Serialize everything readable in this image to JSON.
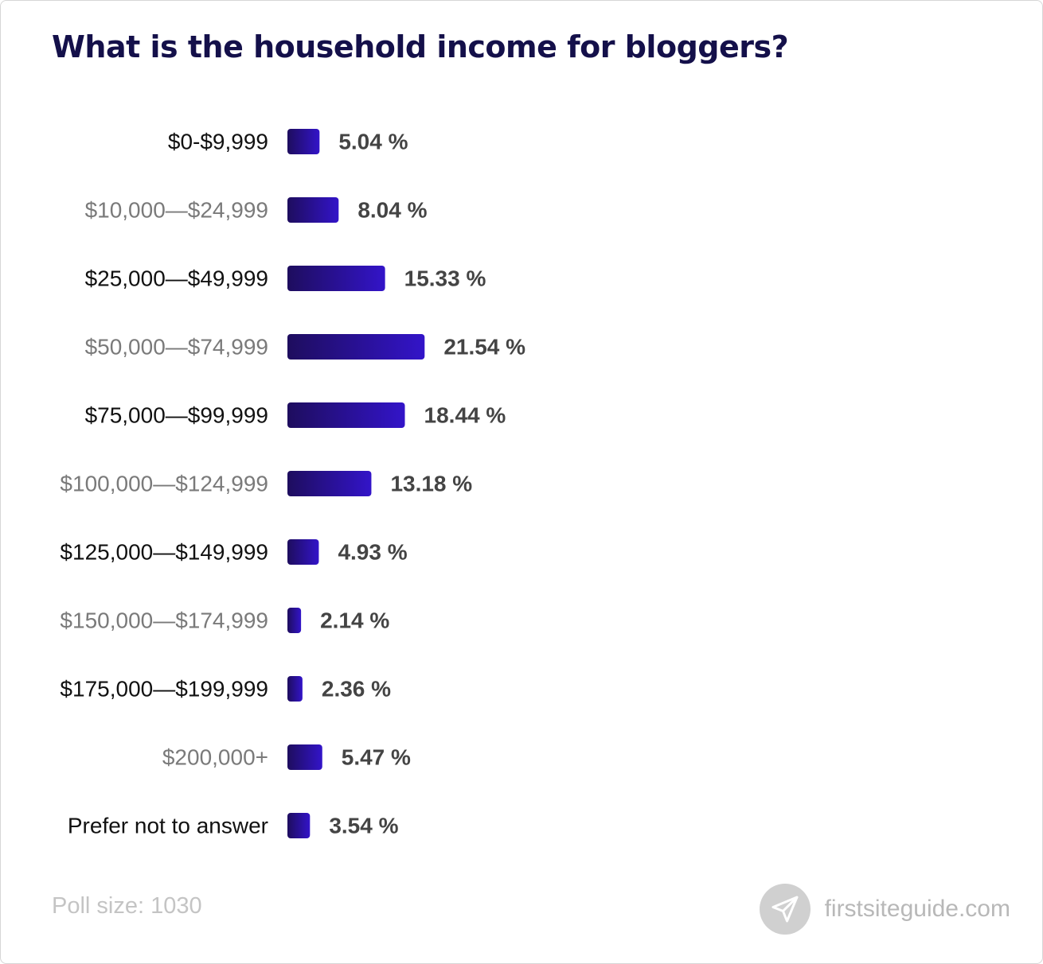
{
  "title": "What is the household income for bloggers?",
  "footer": {
    "poll_size": "Poll size: 1030",
    "brand": "firstsiteguide.com"
  },
  "colors": {
    "bar_start": "#1e0d5e",
    "bar_end": "#3314c9",
    "label_dark": "#111111",
    "label_light": "#7a7a7a",
    "value_text": "#444444"
  },
  "icons": {
    "brand": "paper-plane-icon"
  },
  "chart_data": {
    "type": "bar",
    "orientation": "horizontal",
    "title": "What is the household income for bloggers?",
    "categories": [
      "$0-$9,999",
      "$10,000—$24,999",
      "$25,000—$49,999",
      "$50,000—$74,999",
      "$75,000—$99,999",
      "$100,000—$124,999",
      "$125,000—$149,999",
      "$150,000—$174,999",
      "$175,000—$199,999",
      "$200,000+",
      "Prefer not to answer"
    ],
    "values": [
      5.04,
      8.04,
      15.33,
      21.54,
      18.44,
      13.18,
      4.93,
      2.14,
      2.36,
      5.47,
      3.54
    ],
    "value_labels": [
      "5.04 %",
      "8.04 %",
      "15.33 %",
      "21.54 %",
      "18.44 %",
      "13.18 %",
      "4.93 %",
      "2.14 %",
      "2.36 %",
      "5.47 %",
      "3.54 %"
    ],
    "unit": "%",
    "grid": false,
    "legend": "none"
  }
}
